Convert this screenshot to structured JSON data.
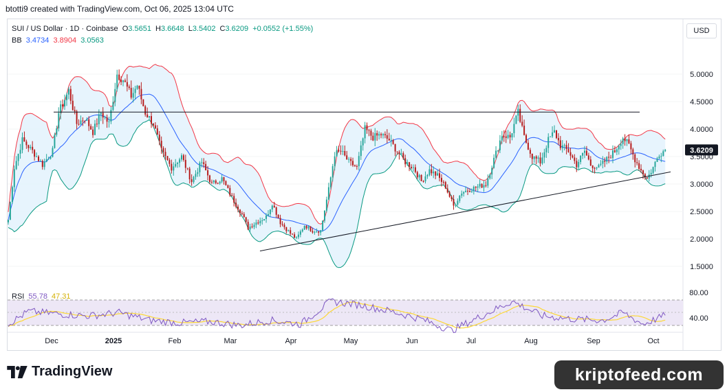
{
  "credit": "btotti9 created with TradingView.com, Oct 06, 2025 13:04 UTC",
  "legend": {
    "symbol": "SUI / US Dollar · 1D · Coinbase",
    "o_label": "O",
    "o": "3.5651",
    "h_label": "H",
    "h": "3.6648",
    "l_label": "L",
    "l": "3.5402",
    "c_label": "C",
    "c": "3.6209",
    "change": "+0.0552 (+1.55%)",
    "bb_label": "BB",
    "bb_basis": "3.4734",
    "bb_upper": "3.8904",
    "bb_lower": "3.0563",
    "rsi_label": "RSI",
    "rsi_value": "55.78",
    "rsi_ma": "47.31"
  },
  "currency_button": "USD",
  "brand": "TradingView",
  "watermark": "kriptofeed.com",
  "colors": {
    "up": "#26a69a",
    "down": "#b71c1c",
    "upper_band": "#f23645",
    "basis": "#2962ff",
    "lower_band": "#089981",
    "band_fill": "#e3f2fd",
    "rsi": "#7e57c2",
    "rsi_ma": "#fdd835",
    "rsi_bg": "#ede7f6",
    "price_tag": "#131722"
  },
  "chart_data": {
    "type": "candlestick",
    "price_axis": {
      "ticks": [
        1.5,
        2.0,
        2.5,
        3.0,
        3.5,
        4.0,
        4.5,
        5.0
      ],
      "tick_labels": [
        "1.5000",
        "2.0000",
        "2.5000",
        "3.0000",
        "3.5000",
        "4.0000",
        "4.5000",
        "5.0000"
      ],
      "range": [
        1.2,
        5.6
      ]
    },
    "last_price_label": "3.6209",
    "last_price": 3.6209,
    "time_labels": [
      "Dec",
      "2025",
      "Feb",
      "Mar",
      "Apr",
      "May",
      "Jun",
      "Jul",
      "Aug",
      "Sep",
      "Oct"
    ],
    "keypoints": [
      {
        "d": 0,
        "p": 2.35
      },
      {
        "d": 3,
        "p": 3.3
      },
      {
        "d": 7,
        "p": 3.8
      },
      {
        "d": 12,
        "p": 3.6
      },
      {
        "d": 17,
        "p": 3.35
      },
      {
        "d": 22,
        "p": 3.6
      },
      {
        "d": 25,
        "p": 4.3
      },
      {
        "d": 30,
        "p": 4.7
      },
      {
        "d": 34,
        "p": 4.1
      },
      {
        "d": 38,
        "p": 4.2
      },
      {
        "d": 42,
        "p": 3.95
      },
      {
        "d": 46,
        "p": 4.3
      },
      {
        "d": 50,
        "p": 4.1
      },
      {
        "d": 54,
        "p": 5.0
      },
      {
        "d": 57,
        "p": 4.9
      },
      {
        "d": 61,
        "p": 4.6
      },
      {
        "d": 64,
        "p": 4.8
      },
      {
        "d": 68,
        "p": 4.3
      },
      {
        "d": 72,
        "p": 4.1
      },
      {
        "d": 76,
        "p": 3.6
      },
      {
        "d": 81,
        "p": 3.3
      },
      {
        "d": 86,
        "p": 3.5
      },
      {
        "d": 91,
        "p": 3.05
      },
      {
        "d": 96,
        "p": 3.4
      },
      {
        "d": 101,
        "p": 3.0
      },
      {
        "d": 106,
        "p": 3.1
      },
      {
        "d": 111,
        "p": 2.75
      },
      {
        "d": 116,
        "p": 2.45
      },
      {
        "d": 119,
        "p": 2.2
      },
      {
        "d": 123,
        "p": 2.3
      },
      {
        "d": 128,
        "p": 2.4
      },
      {
        "d": 131,
        "p": 2.65
      },
      {
        "d": 135,
        "p": 2.3
      },
      {
        "d": 140,
        "p": 2.1
      },
      {
        "d": 143,
        "p": 2.0
      },
      {
        "d": 147,
        "p": 2.25
      },
      {
        "d": 151,
        "p": 2.15
      },
      {
        "d": 155,
        "p": 2.15
      },
      {
        "d": 159,
        "p": 2.9
      },
      {
        "d": 162,
        "p": 3.55
      },
      {
        "d": 165,
        "p": 3.6
      },
      {
        "d": 169,
        "p": 3.4
      },
      {
        "d": 173,
        "p": 3.3
      },
      {
        "d": 177,
        "p": 4.0
      },
      {
        "d": 181,
        "p": 3.85
      },
      {
        "d": 185,
        "p": 3.9
      },
      {
        "d": 189,
        "p": 3.8
      },
      {
        "d": 193,
        "p": 3.6
      },
      {
        "d": 197,
        "p": 3.4
      },
      {
        "d": 201,
        "p": 3.3
      },
      {
        "d": 205,
        "p": 3.05
      },
      {
        "d": 209,
        "p": 3.25
      },
      {
        "d": 213,
        "p": 3.15
      },
      {
        "d": 217,
        "p": 2.95
      },
      {
        "d": 221,
        "p": 2.6
      },
      {
        "d": 225,
        "p": 2.85
      },
      {
        "d": 229,
        "p": 2.9
      },
      {
        "d": 233,
        "p": 2.95
      },
      {
        "d": 237,
        "p": 3.0
      },
      {
        "d": 241,
        "p": 3.45
      },
      {
        "d": 245,
        "p": 3.9
      },
      {
        "d": 249,
        "p": 3.85
      },
      {
        "d": 253,
        "p": 4.3
      },
      {
        "d": 256,
        "p": 3.85
      },
      {
        "d": 260,
        "p": 3.5
      },
      {
        "d": 264,
        "p": 3.4
      },
      {
        "d": 268,
        "p": 3.8
      },
      {
        "d": 271,
        "p": 3.95
      },
      {
        "d": 274,
        "p": 3.7
      },
      {
        "d": 278,
        "p": 3.6
      },
      {
        "d": 282,
        "p": 3.35
      },
      {
        "d": 286,
        "p": 3.6
      },
      {
        "d": 289,
        "p": 3.35
      },
      {
        "d": 293,
        "p": 3.3
      },
      {
        "d": 297,
        "p": 3.45
      },
      {
        "d": 301,
        "p": 3.6
      },
      {
        "d": 305,
        "p": 3.85
      },
      {
        "d": 308,
        "p": 3.7
      },
      {
        "d": 311,
        "p": 3.45
      },
      {
        "d": 314,
        "p": 3.25
      },
      {
        "d": 317,
        "p": 3.1
      },
      {
        "d": 320,
        "p": 3.3
      },
      {
        "d": 323,
        "p": 3.55
      },
      {
        "d": 326,
        "p": 3.6209
      }
    ],
    "horizontal_line": {
      "price": 4.31
    },
    "trendline": {
      "start": {
        "d": 121,
        "p": 1.78
      },
      "end": {
        "d": 335,
        "p": 3.22
      }
    },
    "rsi": {
      "levels": [
        80,
        40
      ],
      "tick_labels": [
        "80.00",
        "40.00"
      ],
      "keypoints": [
        {
          "d": 0,
          "p": 42
        },
        {
          "d": 10,
          "p": 62
        },
        {
          "d": 25,
          "p": 58
        },
        {
          "d": 40,
          "p": 55
        },
        {
          "d": 55,
          "p": 60
        },
        {
          "d": 70,
          "p": 48
        },
        {
          "d": 85,
          "p": 44
        },
        {
          "d": 100,
          "p": 46
        },
        {
          "d": 115,
          "p": 40
        },
        {
          "d": 130,
          "p": 48
        },
        {
          "d": 145,
          "p": 42
        },
        {
          "d": 160,
          "p": 78
        },
        {
          "d": 175,
          "p": 72
        },
        {
          "d": 190,
          "p": 62
        },
        {
          "d": 205,
          "p": 50
        },
        {
          "d": 220,
          "p": 32
        },
        {
          "d": 235,
          "p": 55
        },
        {
          "d": 250,
          "p": 78
        },
        {
          "d": 265,
          "p": 55
        },
        {
          "d": 280,
          "p": 50
        },
        {
          "d": 295,
          "p": 48
        },
        {
          "d": 305,
          "p": 60
        },
        {
          "d": 315,
          "p": 42
        },
        {
          "d": 326,
          "p": 55.78
        }
      ]
    }
  }
}
